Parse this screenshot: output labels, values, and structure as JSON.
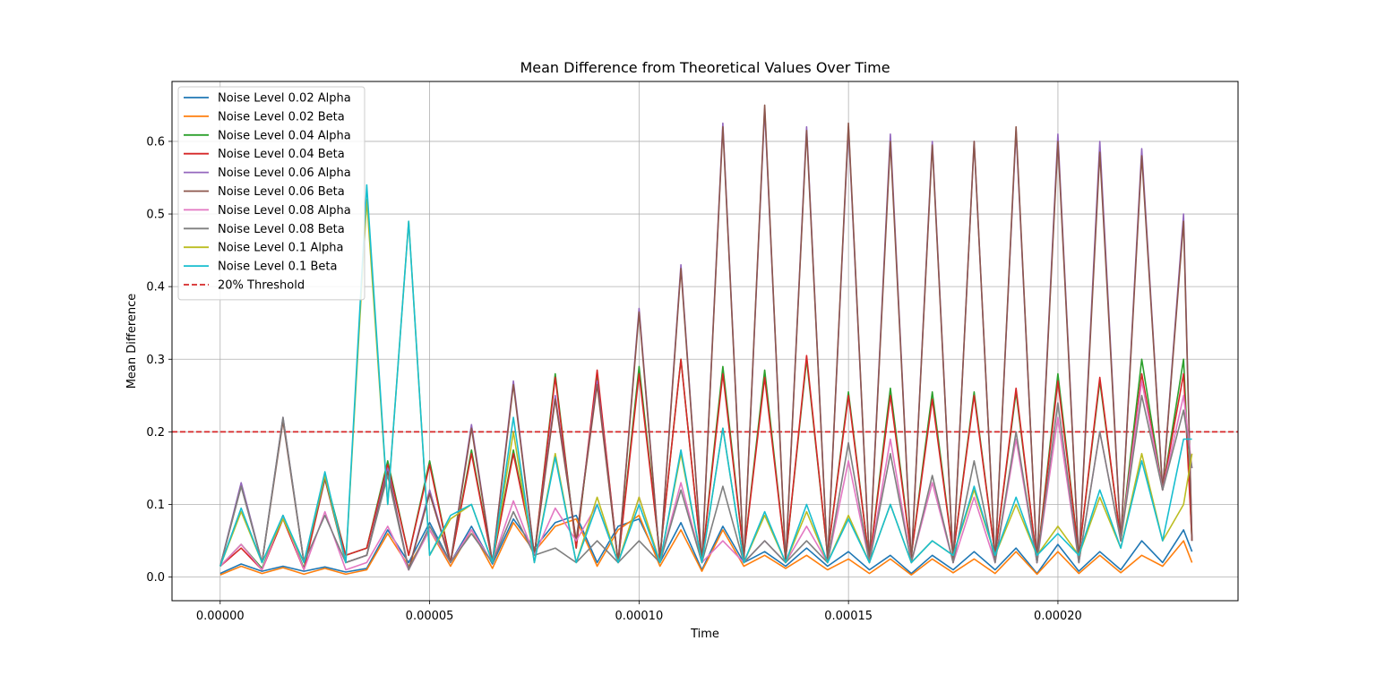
{
  "chart_data": {
    "type": "line",
    "title": "Mean Difference from Theoretical Values Over Time",
    "xlabel": "Time",
    "ylabel": "Mean Difference",
    "xlim": [
      -1.15e-05,
      0.000243
    ],
    "ylim": [
      -0.0325,
      0.6825
    ],
    "xticks": [
      {
        "value": 0.0,
        "label": "0.00000"
      },
      {
        "value": 5e-05,
        "label": "0.00005"
      },
      {
        "value": 0.0001,
        "label": "0.00010"
      },
      {
        "value": 0.00015,
        "label": "0.00015"
      },
      {
        "value": 0.0002,
        "label": "0.00020"
      }
    ],
    "yticks": [
      {
        "value": 0.0,
        "label": "0.0"
      },
      {
        "value": 0.1,
        "label": "0.1"
      },
      {
        "value": 0.2,
        "label": "0.2"
      },
      {
        "value": 0.3,
        "label": "0.3"
      },
      {
        "value": 0.4,
        "label": "0.4"
      },
      {
        "value": 0.5,
        "label": "0.5"
      },
      {
        "value": 0.6,
        "label": "0.6"
      }
    ],
    "grid": true,
    "legend_position": "upper-left",
    "threshold": {
      "name": "20% Threshold",
      "value": 0.2,
      "color": "#d62728",
      "style": "dashed"
    },
    "series": [
      {
        "name": "Noise Level 0.02 Alpha",
        "color": "#1f77b4",
        "x": [
          0.0,
          5e-06,
          1e-05,
          1.5e-05,
          2e-05,
          2.5e-05,
          3e-05,
          3.5e-05,
          4e-05,
          4.5e-05,
          5e-05,
          5.5e-05,
          6e-05,
          6.5e-05,
          7e-05,
          7.5e-05,
          8e-05,
          8.5e-05,
          9e-05,
          9.5e-05,
          0.0001,
          0.000105,
          0.00011,
          0.000115,
          0.00012,
          0.000125,
          0.00013,
          0.000135,
          0.00014,
          0.000145,
          0.00015,
          0.000155,
          0.00016,
          0.000165,
          0.00017,
          0.000175,
          0.00018,
          0.000185,
          0.00019,
          0.000195,
          0.0002,
          0.000205,
          0.00021,
          0.000215,
          0.00022,
          0.000225,
          0.00023,
          0.000232
        ],
        "y": [
          0.005,
          0.018,
          0.008,
          0.015,
          0.008,
          0.014,
          0.007,
          0.012,
          0.065,
          0.02,
          0.075,
          0.02,
          0.07,
          0.018,
          0.08,
          0.04,
          0.075,
          0.085,
          0.02,
          0.07,
          0.08,
          0.02,
          0.075,
          0.01,
          0.07,
          0.02,
          0.035,
          0.015,
          0.04,
          0.015,
          0.035,
          0.01,
          0.03,
          0.005,
          0.03,
          0.01,
          0.035,
          0.01,
          0.04,
          0.005,
          0.045,
          0.008,
          0.035,
          0.01,
          0.05,
          0.02,
          0.065,
          0.035
        ]
      },
      {
        "name": "Noise Level 0.02 Beta",
        "color": "#ff7f0e",
        "x": [
          0.0,
          5e-06,
          1e-05,
          1.5e-05,
          2e-05,
          2.5e-05,
          3e-05,
          3.5e-05,
          4e-05,
          4.5e-05,
          5e-05,
          5.5e-05,
          6e-05,
          6.5e-05,
          7e-05,
          7.5e-05,
          8e-05,
          8.5e-05,
          9e-05,
          9.5e-05,
          0.0001,
          0.000105,
          0.00011,
          0.000115,
          0.00012,
          0.000125,
          0.00013,
          0.000135,
          0.00014,
          0.000145,
          0.00015,
          0.000155,
          0.00016,
          0.000165,
          0.00017,
          0.000175,
          0.00018,
          0.000185,
          0.00019,
          0.000195,
          0.0002,
          0.000205,
          0.00021,
          0.000215,
          0.00022,
          0.000225,
          0.00023,
          0.000232
        ],
        "y": [
          0.003,
          0.015,
          0.005,
          0.013,
          0.004,
          0.012,
          0.004,
          0.01,
          0.06,
          0.015,
          0.065,
          0.015,
          0.065,
          0.012,
          0.075,
          0.035,
          0.07,
          0.08,
          0.015,
          0.065,
          0.085,
          0.015,
          0.065,
          0.008,
          0.065,
          0.015,
          0.03,
          0.012,
          0.03,
          0.01,
          0.025,
          0.005,
          0.025,
          0.003,
          0.025,
          0.006,
          0.025,
          0.005,
          0.035,
          0.004,
          0.035,
          0.005,
          0.03,
          0.006,
          0.03,
          0.015,
          0.05,
          0.02
        ]
      },
      {
        "name": "Noise Level 0.04 Alpha",
        "color": "#2ca02c",
        "x": [
          0.0,
          5e-06,
          1e-05,
          1.5e-05,
          2e-05,
          2.5e-05,
          3e-05,
          3.5e-05,
          4e-05,
          4.5e-05,
          5e-05,
          5.5e-05,
          6e-05,
          6.5e-05,
          7e-05,
          7.5e-05,
          8e-05,
          8.5e-05,
          9e-05,
          9.5e-05,
          0.0001,
          0.000105,
          0.00011,
          0.000115,
          0.00012,
          0.000125,
          0.00013,
          0.000135,
          0.00014,
          0.000145,
          0.00015,
          0.000155,
          0.00016,
          0.000165,
          0.00017,
          0.000175,
          0.00018,
          0.000185,
          0.00019,
          0.000195,
          0.0002,
          0.000205,
          0.00021,
          0.000215,
          0.00022,
          0.000225,
          0.00023,
          0.000232
        ],
        "y": [
          0.015,
          0.045,
          0.012,
          0.085,
          0.012,
          0.14,
          0.03,
          0.04,
          0.16,
          0.03,
          0.16,
          0.02,
          0.175,
          0.02,
          0.175,
          0.03,
          0.28,
          0.04,
          0.28,
          0.02,
          0.29,
          0.03,
          0.3,
          0.02,
          0.29,
          0.03,
          0.285,
          0.025,
          0.3,
          0.03,
          0.255,
          0.02,
          0.26,
          0.03,
          0.255,
          0.03,
          0.255,
          0.03,
          0.255,
          0.02,
          0.28,
          0.03,
          0.27,
          0.05,
          0.3,
          0.12,
          0.3,
          0.05
        ]
      },
      {
        "name": "Noise Level 0.04 Beta",
        "color": "#d62728",
        "x": [
          0.0,
          5e-06,
          1e-05,
          1.5e-05,
          2e-05,
          2.5e-05,
          3e-05,
          3.5e-05,
          4e-05,
          4.5e-05,
          5e-05,
          5.5e-05,
          6e-05,
          6.5e-05,
          7e-05,
          7.5e-05,
          8e-05,
          8.5e-05,
          9e-05,
          9.5e-05,
          0.0001,
          0.000105,
          0.00011,
          0.000115,
          0.00012,
          0.000125,
          0.00013,
          0.000135,
          0.00014,
          0.000145,
          0.00015,
          0.000155,
          0.00016,
          0.000165,
          0.00017,
          0.000175,
          0.00018,
          0.000185,
          0.00019,
          0.000195,
          0.0002,
          0.000205,
          0.00021,
          0.000215,
          0.00022,
          0.000225,
          0.00023,
          0.000232
        ],
        "y": [
          0.015,
          0.04,
          0.01,
          0.08,
          0.01,
          0.135,
          0.03,
          0.04,
          0.155,
          0.03,
          0.155,
          0.02,
          0.17,
          0.02,
          0.17,
          0.03,
          0.275,
          0.04,
          0.285,
          0.02,
          0.28,
          0.03,
          0.3,
          0.02,
          0.28,
          0.03,
          0.275,
          0.025,
          0.305,
          0.03,
          0.25,
          0.02,
          0.25,
          0.03,
          0.245,
          0.03,
          0.25,
          0.03,
          0.26,
          0.02,
          0.27,
          0.03,
          0.275,
          0.05,
          0.28,
          0.12,
          0.28,
          0.05
        ]
      },
      {
        "name": "Noise Level 0.06 Alpha",
        "color": "#9467bd",
        "x": [
          0.0,
          5e-06,
          1e-05,
          1.5e-05,
          2e-05,
          2.5e-05,
          3e-05,
          3.5e-05,
          4e-05,
          4.5e-05,
          5e-05,
          5.5e-05,
          6e-05,
          6.5e-05,
          7e-05,
          7.5e-05,
          8e-05,
          8.5e-05,
          9e-05,
          9.5e-05,
          0.0001,
          0.000105,
          0.00011,
          0.000115,
          0.00012,
          0.000125,
          0.00013,
          0.000135,
          0.00014,
          0.000145,
          0.00015,
          0.000155,
          0.00016,
          0.000165,
          0.00017,
          0.000175,
          0.00018,
          0.000185,
          0.00019,
          0.000195,
          0.0002,
          0.000205,
          0.00021,
          0.000215,
          0.00022,
          0.000225,
          0.00023,
          0.000232
        ],
        "y": [
          0.015,
          0.13,
          0.02,
          0.22,
          0.02,
          0.14,
          0.02,
          0.03,
          0.15,
          0.01,
          0.12,
          0.02,
          0.21,
          0.02,
          0.27,
          0.03,
          0.25,
          0.05,
          0.27,
          0.02,
          0.37,
          0.02,
          0.43,
          0.02,
          0.625,
          0.02,
          0.645,
          0.02,
          0.62,
          0.02,
          0.62,
          0.02,
          0.61,
          0.02,
          0.6,
          0.02,
          0.6,
          0.02,
          0.615,
          0.02,
          0.61,
          0.02,
          0.6,
          0.05,
          0.59,
          0.12,
          0.5,
          0.05
        ]
      },
      {
        "name": "Noise Level 0.06 Beta",
        "color": "#8c564b",
        "x": [
          0.0,
          5e-06,
          1e-05,
          1.5e-05,
          2e-05,
          2.5e-05,
          3e-05,
          3.5e-05,
          4e-05,
          4.5e-05,
          5e-05,
          5.5e-05,
          6e-05,
          6.5e-05,
          7e-05,
          7.5e-05,
          8e-05,
          8.5e-05,
          9e-05,
          9.5e-05,
          0.0001,
          0.000105,
          0.00011,
          0.000115,
          0.00012,
          0.000125,
          0.00013,
          0.000135,
          0.00014,
          0.000145,
          0.00015,
          0.000155,
          0.00016,
          0.000165,
          0.00017,
          0.000175,
          0.00018,
          0.000185,
          0.00019,
          0.000195,
          0.0002,
          0.000205,
          0.00021,
          0.000215,
          0.00022,
          0.000225,
          0.00023,
          0.000232
        ],
        "y": [
          0.015,
          0.125,
          0.02,
          0.215,
          0.02,
          0.135,
          0.02,
          0.03,
          0.145,
          0.01,
          0.115,
          0.02,
          0.205,
          0.02,
          0.265,
          0.03,
          0.245,
          0.05,
          0.265,
          0.02,
          0.365,
          0.02,
          0.425,
          0.02,
          0.62,
          0.02,
          0.65,
          0.02,
          0.615,
          0.02,
          0.625,
          0.02,
          0.6,
          0.02,
          0.595,
          0.02,
          0.6,
          0.02,
          0.62,
          0.02,
          0.6,
          0.02,
          0.585,
          0.05,
          0.58,
          0.12,
          0.49,
          0.05
        ]
      },
      {
        "name": "Noise Level 0.08 Alpha",
        "color": "#e377c2",
        "x": [
          0.0,
          5e-06,
          1e-05,
          1.5e-05,
          2e-05,
          2.5e-05,
          3e-05,
          3.5e-05,
          4e-05,
          4.5e-05,
          5e-05,
          5.5e-05,
          6e-05,
          6.5e-05,
          7e-05,
          7.5e-05,
          8e-05,
          8.5e-05,
          9e-05,
          9.5e-05,
          0.0001,
          0.000105,
          0.00011,
          0.000115,
          0.00012,
          0.000125,
          0.00013,
          0.000135,
          0.00014,
          0.000145,
          0.00015,
          0.000155,
          0.00016,
          0.000165,
          0.00017,
          0.000175,
          0.00018,
          0.000185,
          0.00019,
          0.000195,
          0.0002,
          0.000205,
          0.00021,
          0.000215,
          0.00022,
          0.000225,
          0.00023,
          0.000232
        ],
        "y": [
          0.015,
          0.045,
          0.01,
          0.085,
          0.01,
          0.09,
          0.01,
          0.02,
          0.07,
          0.01,
          0.065,
          0.02,
          0.065,
          0.02,
          0.105,
          0.03,
          0.095,
          0.05,
          0.1,
          0.02,
          0.11,
          0.02,
          0.13,
          0.02,
          0.05,
          0.02,
          0.05,
          0.02,
          0.07,
          0.02,
          0.16,
          0.02,
          0.19,
          0.02,
          0.13,
          0.02,
          0.11,
          0.02,
          0.19,
          0.02,
          0.22,
          0.02,
          0.2,
          0.05,
          0.27,
          0.12,
          0.25,
          0.15
        ]
      },
      {
        "name": "Noise Level 0.08 Beta",
        "color": "#7f7f7f",
        "x": [
          0.0,
          5e-06,
          1e-05,
          1.5e-05,
          2e-05,
          2.5e-05,
          3e-05,
          3.5e-05,
          4e-05,
          4.5e-05,
          5e-05,
          5.5e-05,
          6e-05,
          6.5e-05,
          7e-05,
          7.5e-05,
          8e-05,
          8.5e-05,
          9e-05,
          9.5e-05,
          0.0001,
          0.000105,
          0.00011,
          0.000115,
          0.00012,
          0.000125,
          0.00013,
          0.000135,
          0.00014,
          0.000145,
          0.00015,
          0.000155,
          0.00016,
          0.000165,
          0.00017,
          0.000175,
          0.00018,
          0.000185,
          0.00019,
          0.000195,
          0.0002,
          0.000205,
          0.00021,
          0.000215,
          0.00022,
          0.000225,
          0.00023,
          0.000232
        ],
        "y": [
          0.015,
          0.125,
          0.02,
          0.22,
          0.02,
          0.085,
          0.02,
          0.03,
          0.14,
          0.01,
          0.07,
          0.02,
          0.06,
          0.02,
          0.09,
          0.03,
          0.04,
          0.02,
          0.05,
          0.02,
          0.05,
          0.02,
          0.12,
          0.02,
          0.125,
          0.02,
          0.05,
          0.02,
          0.05,
          0.02,
          0.185,
          0.02,
          0.17,
          0.02,
          0.14,
          0.02,
          0.16,
          0.02,
          0.2,
          0.02,
          0.24,
          0.02,
          0.2,
          0.05,
          0.25,
          0.12,
          0.23,
          0.15
        ]
      },
      {
        "name": "Noise Level 0.1 Alpha",
        "color": "#bcbd22",
        "x": [
          0.0,
          5e-06,
          1e-05,
          1.5e-05,
          2e-05,
          2.5e-05,
          3e-05,
          3.5e-05,
          4e-05,
          4.5e-05,
          5e-05,
          5.5e-05,
          6e-05,
          6.5e-05,
          7e-05,
          7.5e-05,
          8e-05,
          8.5e-05,
          9e-05,
          9.5e-05,
          0.0001,
          0.000105,
          0.00011,
          0.000115,
          0.00012,
          0.000125,
          0.00013,
          0.000135,
          0.00014,
          0.000145,
          0.00015,
          0.000155,
          0.00016,
          0.000165,
          0.00017,
          0.000175,
          0.00018,
          0.000185,
          0.00019,
          0.000195,
          0.0002,
          0.000205,
          0.00021,
          0.000215,
          0.00022,
          0.000225,
          0.00023,
          0.000232
        ],
        "y": [
          0.015,
          0.09,
          0.02,
          0.08,
          0.02,
          0.14,
          0.02,
          0.52,
          0.1,
          0.49,
          0.03,
          0.08,
          0.1,
          0.02,
          0.2,
          0.02,
          0.17,
          0.02,
          0.11,
          0.02,
          0.11,
          0.02,
          0.17,
          0.02,
          0.205,
          0.02,
          0.085,
          0.02,
          0.09,
          0.02,
          0.085,
          0.02,
          0.1,
          0.02,
          0.05,
          0.03,
          0.12,
          0.03,
          0.1,
          0.03,
          0.07,
          0.03,
          0.11,
          0.04,
          0.17,
          0.05,
          0.1,
          0.17
        ]
      },
      {
        "name": "Noise Level 0.1 Beta",
        "color": "#17becf",
        "x": [
          0.0,
          5e-06,
          1e-05,
          1.5e-05,
          2e-05,
          2.5e-05,
          3e-05,
          3.5e-05,
          4e-05,
          4.5e-05,
          5e-05,
          5.5e-05,
          6e-05,
          6.5e-05,
          7e-05,
          7.5e-05,
          8e-05,
          8.5e-05,
          9e-05,
          9.5e-05,
          0.0001,
          0.000105,
          0.00011,
          0.000115,
          0.00012,
          0.000125,
          0.00013,
          0.000135,
          0.00014,
          0.000145,
          0.00015,
          0.000155,
          0.00016,
          0.000165,
          0.00017,
          0.000175,
          0.00018,
          0.000185,
          0.00019,
          0.000195,
          0.0002,
          0.000205,
          0.00021,
          0.000215,
          0.00022,
          0.000225,
          0.00023,
          0.000232
        ],
        "y": [
          0.015,
          0.095,
          0.02,
          0.085,
          0.02,
          0.145,
          0.02,
          0.54,
          0.1,
          0.49,
          0.03,
          0.085,
          0.1,
          0.02,
          0.22,
          0.02,
          0.165,
          0.02,
          0.1,
          0.02,
          0.1,
          0.02,
          0.175,
          0.02,
          0.205,
          0.02,
          0.09,
          0.02,
          0.1,
          0.02,
          0.08,
          0.02,
          0.1,
          0.02,
          0.05,
          0.03,
          0.125,
          0.03,
          0.11,
          0.03,
          0.06,
          0.03,
          0.12,
          0.04,
          0.16,
          0.05,
          0.19,
          0.19
        ]
      }
    ]
  }
}
